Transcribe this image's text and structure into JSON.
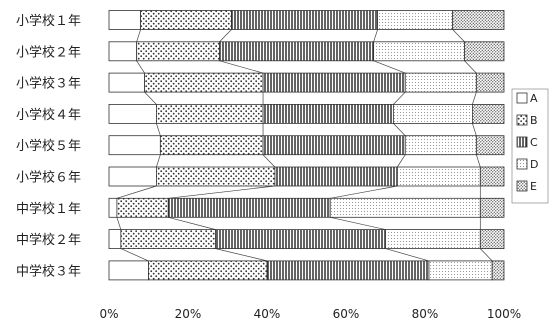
{
  "chart_data": {
    "type": "bar",
    "orientation": "horizontal",
    "stacked": true,
    "categories": [
      "小学校１年",
      "小学校２年",
      "小学校３年",
      "小学校４年",
      "小学校５年",
      "小学校６年",
      "中学校１年",
      "中学校２年",
      "中学校３年"
    ],
    "series": [
      {
        "name": "A",
        "values": [
          8,
          7,
          9,
          12,
          13,
          12,
          2,
          3,
          10
        ]
      },
      {
        "name": "B",
        "values": [
          23,
          21,
          30,
          27,
          26,
          30,
          13,
          24,
          30
        ]
      },
      {
        "name": "C",
        "values": [
          37,
          39,
          36,
          33,
          36,
          31,
          41,
          43,
          41
        ]
      },
      {
        "name": "D",
        "values": [
          19,
          23,
          18,
          20,
          18,
          21,
          38,
          24,
          16
        ]
      },
      {
        "name": "E",
        "values": [
          13,
          10,
          7,
          8,
          7,
          6,
          6,
          6,
          3
        ]
      }
    ],
    "xlim": [
      0,
      100
    ],
    "x_ticks": [
      "0%",
      "20%",
      "40%",
      "60%",
      "80%",
      "100%"
    ],
    "legend_position": "right",
    "connector_lines": true,
    "colors": {
      "A": "#ffffff",
      "B": "#e6e6e6",
      "C": "#cfcfcf",
      "D": "#f0f0f0",
      "E": "#dcdcdc",
      "line": "#333333"
    }
  }
}
